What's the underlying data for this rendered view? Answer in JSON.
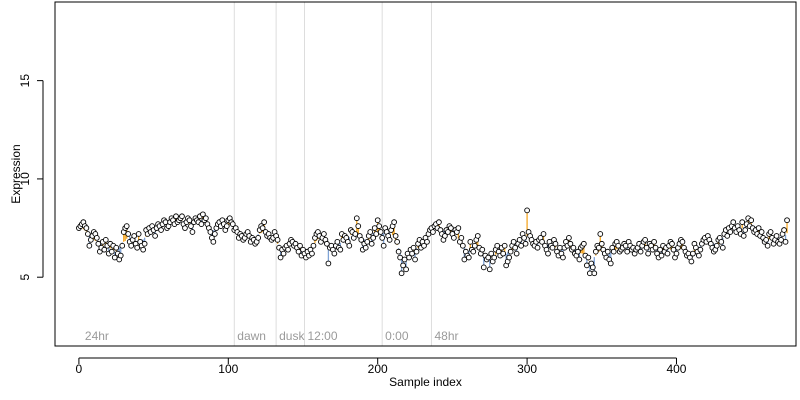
{
  "chart_data": {
    "type": "scatter",
    "title": "",
    "xlabel": "Sample index",
    "ylabel": "Expression",
    "xlim": [
      -16,
      480
    ],
    "ylim": [
      1.5,
      19
    ],
    "x_ticks": [
      0,
      100,
      200,
      300,
      400
    ],
    "x_tick_labels": [
      "0",
      "100",
      "200",
      "300",
      "400"
    ],
    "y_ticks": [
      5,
      10,
      15
    ],
    "y_tick_labels": [
      "5",
      "10",
      "15"
    ],
    "baseline_label_y": 2,
    "grid": false,
    "legend": "none",
    "colors": {
      "point_fill": "#ffffff",
      "point_stroke": "#000000",
      "above_trend": "#f5a623",
      "below_trend": "#7fa3d6",
      "marker_line": "#dddddd",
      "marker_text": "#9a9a9a"
    },
    "markers": [
      {
        "x": 2,
        "label": "24hr"
      },
      {
        "x": 104,
        "label": "dawn"
      },
      {
        "x": 132,
        "label": "dusk"
      },
      {
        "x": 151,
        "label": "12:00"
      },
      {
        "x": 203,
        "label": "0:00"
      },
      {
        "x": 236,
        "label": "48hr"
      }
    ],
    "series": [
      {
        "values": [
          7.5,
          7.6,
          7.7,
          7.8,
          7.6,
          7.5,
          7.2,
          6.6,
          6.9,
          7.1,
          7.3,
          7.2,
          7.0,
          6.7,
          6.3,
          6.5,
          6.8,
          6.4,
          6.9,
          6.6,
          6.2,
          6.7,
          6.3,
          6.6,
          6.0,
          6.5,
          6.2,
          5.9,
          6.1,
          6.6,
          7.3,
          7.5,
          7.6,
          7.2,
          6.8,
          6.6,
          6.9,
          7.1,
          6.7,
          6.5,
          7.2,
          6.8,
          6.6,
          6.4,
          6.7,
          7.4,
          7.2,
          7.5,
          7.3,
          7.6,
          7.4,
          7.1,
          7.5,
          7.7,
          7.6,
          7.4,
          7.7,
          7.9,
          7.8,
          7.5,
          7.6,
          7.8,
          8.0,
          7.9,
          7.7,
          8.1,
          7.8,
          7.9,
          8.0,
          8.1,
          7.7,
          7.5,
          7.8,
          8.0,
          7.9,
          7.6,
          7.3,
          7.8,
          8.0,
          7.9,
          7.8,
          8.1,
          7.7,
          8.2,
          7.9,
          8.0,
          7.7,
          7.5,
          7.3,
          7.0,
          6.8,
          7.2,
          7.5,
          7.7,
          7.8,
          7.6,
          7.9,
          7.7,
          7.4,
          7.6,
          7.9,
          8.0,
          7.8,
          7.7,
          7.4,
          7.5,
          7.3,
          7.0,
          7.2,
          7.1,
          6.9,
          7.0,
          7.2,
          7.3,
          7.1,
          6.8,
          7.0,
          6.9,
          6.7,
          6.8,
          7.0,
          7.4,
          7.6,
          7.5,
          7.8,
          7.3,
          7.1,
          7.2,
          7.0,
          6.9,
          7.0,
          7.3,
          7.1,
          6.9,
          6.5,
          6.0,
          6.4,
          6.2,
          6.5,
          6.6,
          6.4,
          6.7,
          6.9,
          6.8,
          6.6,
          6.7,
          6.5,
          6.3,
          6.6,
          6.1,
          6.4,
          6.2,
          6.0,
          6.3,
          6.1,
          6.4,
          6.2,
          6.6,
          7.0,
          7.2,
          7.3,
          7.1,
          6.8,
          7.0,
          7.2,
          6.9,
          6.7,
          5.7,
          6.5,
          6.6,
          6.4,
          6.2,
          6.6,
          6.8,
          6.5,
          6.4,
          7.2,
          6.9,
          7.1,
          7.0,
          6.8,
          6.6,
          7.4,
          7.3,
          7.0,
          7.2,
          8.0,
          7.6,
          7.1,
          6.9,
          6.4,
          6.7,
          6.5,
          6.8,
          7.1,
          7.3,
          6.7,
          7.0,
          7.5,
          7.2,
          7.9,
          7.6,
          7.3,
          7.0,
          6.6,
          7.5,
          7.3,
          7.1,
          6.9,
          7.4,
          7.6,
          7.8,
          7.1,
          6.8,
          6.3,
          6.0,
          5.2,
          5.6,
          5.9,
          5.4,
          6.2,
          6.0,
          6.4,
          6.2,
          6.5,
          5.9,
          6.3,
          6.7,
          6.9,
          6.5,
          6.8,
          6.6,
          7.0,
          6.8,
          7.2,
          7.4,
          7.5,
          7.3,
          7.6,
          7.7,
          7.5,
          7.8,
          7.4,
          7.2,
          6.9,
          7.1,
          7.4,
          7.3,
          7.6,
          7.5,
          7.2,
          7.0,
          7.4,
          7.3,
          7.5,
          6.8,
          7.0,
          6.6,
          5.9,
          6.3,
          6.1,
          6.0,
          6.8,
          6.4,
          6.3,
          6.6,
          6.9,
          7.1,
          6.5,
          6.2,
          6.4,
          5.5,
          6.1,
          5.9,
          6.0,
          5.4,
          6.2,
          5.8,
          6.0,
          6.4,
          6.6,
          6.3,
          6.1,
          6.5,
          6.2,
          6.6,
          5.6,
          5.8,
          6.0,
          6.3,
          6.6,
          6.8,
          6.5,
          6.2,
          6.7,
          6.9,
          6.6,
          7.2,
          7.0,
          6.7,
          8.4,
          7.3,
          7.1,
          6.9,
          6.7,
          6.6,
          6.8,
          6.5,
          6.9,
          7.0,
          6.8,
          7.2,
          6.6,
          6.4,
          6.2,
          6.8,
          6.6,
          6.5,
          6.9,
          6.7,
          6.3,
          6.1,
          6.5,
          6.2,
          6.0,
          6.5,
          6.8,
          6.6,
          7.0,
          6.7,
          6.4,
          6.5,
          6.2,
          6.1,
          6.3,
          5.9,
          6.5,
          6.6,
          6.7,
          6.1,
          5.6,
          6.0,
          5.2,
          5.7,
          5.5,
          5.2,
          6.3,
          6.6,
          6.5,
          7.2,
          6.7,
          6.4,
          6.2,
          6.0,
          6.3,
          5.9,
          5.7,
          6.5,
          6.3,
          6.7,
          6.8,
          6.6,
          6.3,
          6.4,
          6.5,
          6.7,
          6.6,
          6.3,
          6.8,
          6.6,
          6.4,
          6.5,
          6.2,
          6.4,
          6.5,
          6.7,
          6.3,
          6.6,
          6.8,
          6.9,
          6.5,
          6.2,
          6.7,
          6.6,
          6.4,
          6.8,
          6.5,
          6.2,
          6.0,
          6.4,
          6.1,
          6.6,
          6.3,
          6.5,
          6.2,
          6.6,
          6.8,
          6.7,
          6.4,
          6.0,
          6.2,
          6.5,
          6.7,
          6.9,
          6.8,
          6.5,
          6.3,
          6.1,
          6.2,
          6.0,
          5.8,
          6.2,
          6.7,
          6.5,
          6.3,
          6.1,
          6.4,
          6.7,
          6.9,
          7.0,
          6.8,
          7.1,
          6.9,
          6.7,
          6.5,
          6.3,
          6.4,
          6.6,
          6.9,
          7.0,
          6.8,
          6.5,
          7.2,
          7.4,
          7.1,
          7.5,
          7.3,
          7.6,
          7.8,
          7.5,
          7.3,
          7.6,
          7.4,
          7.2,
          7.8,
          7.1,
          7.4,
          7.7,
          8.0,
          7.6,
          7.9,
          7.5,
          7.3,
          7.4,
          7.2,
          7.5,
          7.1,
          7.3,
          7.0,
          6.8,
          6.9,
          6.6,
          7.2,
          7.3,
          7.0,
          6.7,
          6.9,
          7.1,
          6.8,
          6.7,
          6.9,
          7.2,
          7.4,
          6.8,
          7.9
        ]
      }
    ]
  }
}
